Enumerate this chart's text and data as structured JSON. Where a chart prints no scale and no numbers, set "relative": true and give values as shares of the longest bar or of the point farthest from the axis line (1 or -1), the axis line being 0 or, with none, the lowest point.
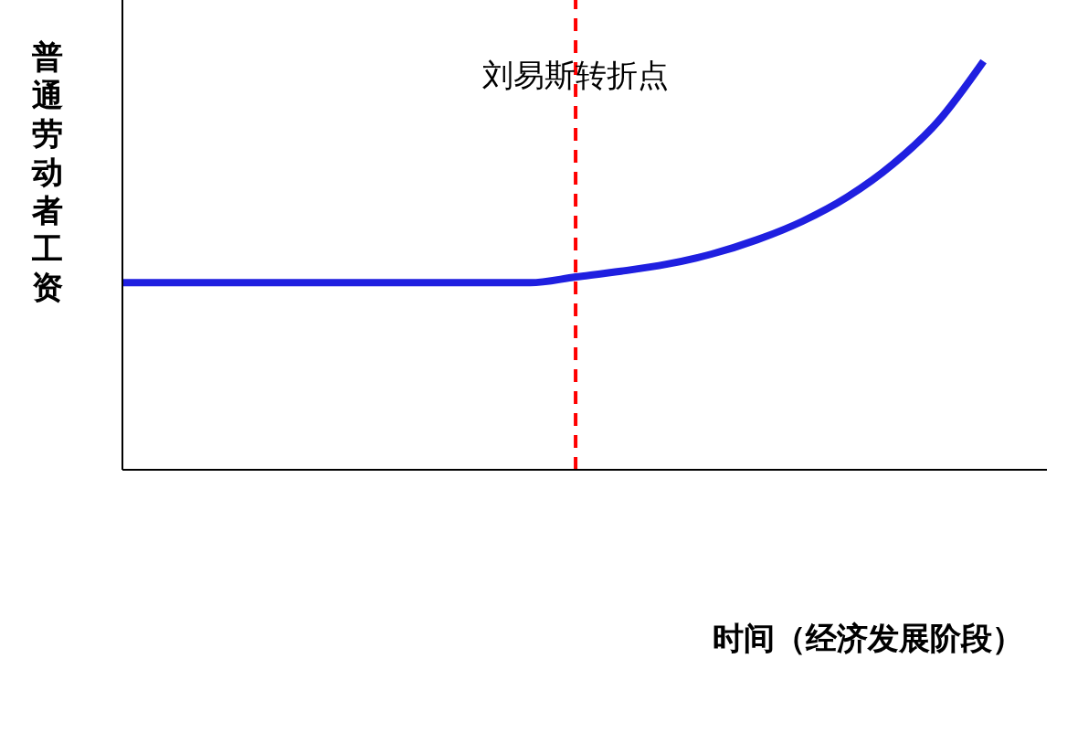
{
  "chart_data": {
    "type": "line",
    "relative": true,
    "xlabel": "时间（经济发展阶段）",
    "ylabel": "普通劳动者工资",
    "categories": [
      null,
      null,
      null,
      null,
      null,
      null,
      null,
      null,
      null,
      null,
      null,
      null,
      null,
      null,
      null,
      null,
      null,
      null,
      null,
      null
    ],
    "series": [
      {
        "color": "#1f1fe0",
        "values": [
          0.458,
          0.458,
          0.458,
          0.458,
          0.458,
          0.458,
          0.458,
          0.458,
          0.458,
          0.458,
          0.472,
          0.486,
          0.503,
          0.528,
          0.563,
          0.608,
          0.668,
          0.748,
          0.853,
          1
        ]
      }
    ],
    "annotations": [
      "刘易斯转折点"
    ],
    "grid": false,
    "legend": false,
    "marker": "none",
    "line_style": "solid"
  }
}
